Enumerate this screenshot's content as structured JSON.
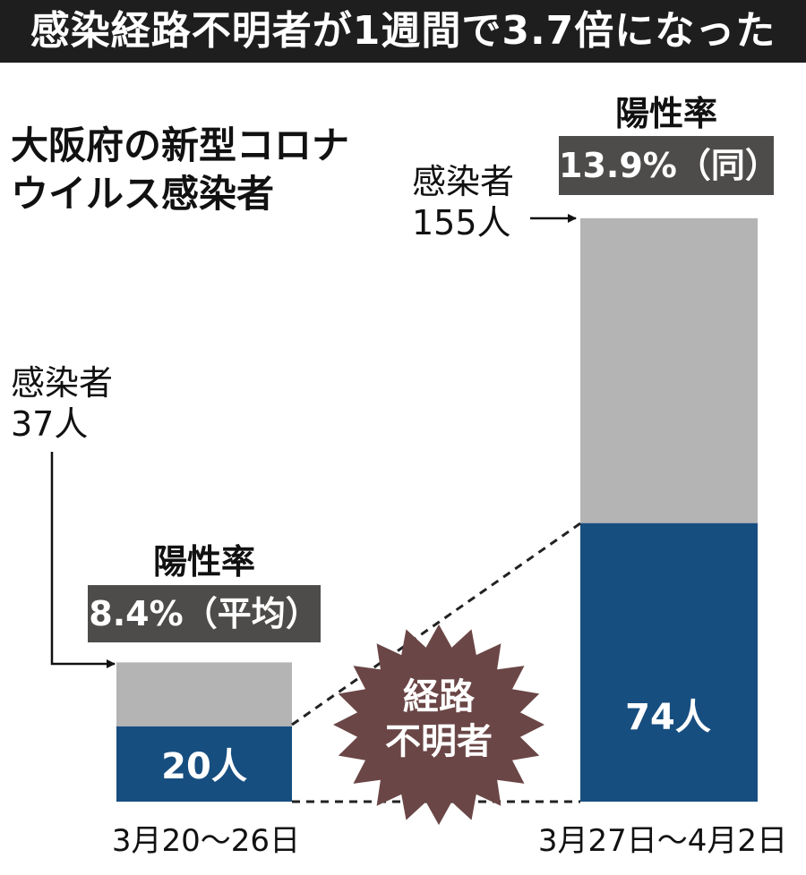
{
  "header": {
    "title": "感染経路不明者が1週間で3.7倍になった"
  },
  "subtitle_line1": "大阪府の新型コロナ",
  "subtitle_line2": "ウイルス感染者",
  "colors": {
    "total": "#b4b4b4",
    "unknown": "#174e80",
    "badge": "#4e4c4a",
    "burst": "#6b4646"
  },
  "periods": [
    {
      "label": "3月20～26日",
      "infected_label": "感染者",
      "infected_value": "37人",
      "rate_label": "陽性率",
      "rate_value": "8.4%（平均）",
      "unknown_label": "20人"
    },
    {
      "label": "3月27日～4月2日",
      "infected_label": "感染者",
      "infected_value": "155人",
      "rate_label": "陽性率",
      "rate_value": "13.9%（同）",
      "unknown_label": "74人"
    }
  ],
  "burst_label_line1": "経路",
  "burst_label_line2": "不明者",
  "chart_data": {
    "type": "bar",
    "stacked": true,
    "categories": [
      "3月20～26日",
      "3月27日～4月2日"
    ],
    "totals": [
      37,
      155
    ],
    "series": [
      {
        "name": "経路不明者",
        "values": [
          20,
          74
        ]
      }
    ],
    "positivity_rate": [
      "8.4%（平均）",
      "13.9%（同）"
    ],
    "title": "感染経路不明者が1週間で3.7倍になった",
    "subtitle": "大阪府の新型コロナウイルス感染者",
    "legend": "none",
    "grid": false
  }
}
